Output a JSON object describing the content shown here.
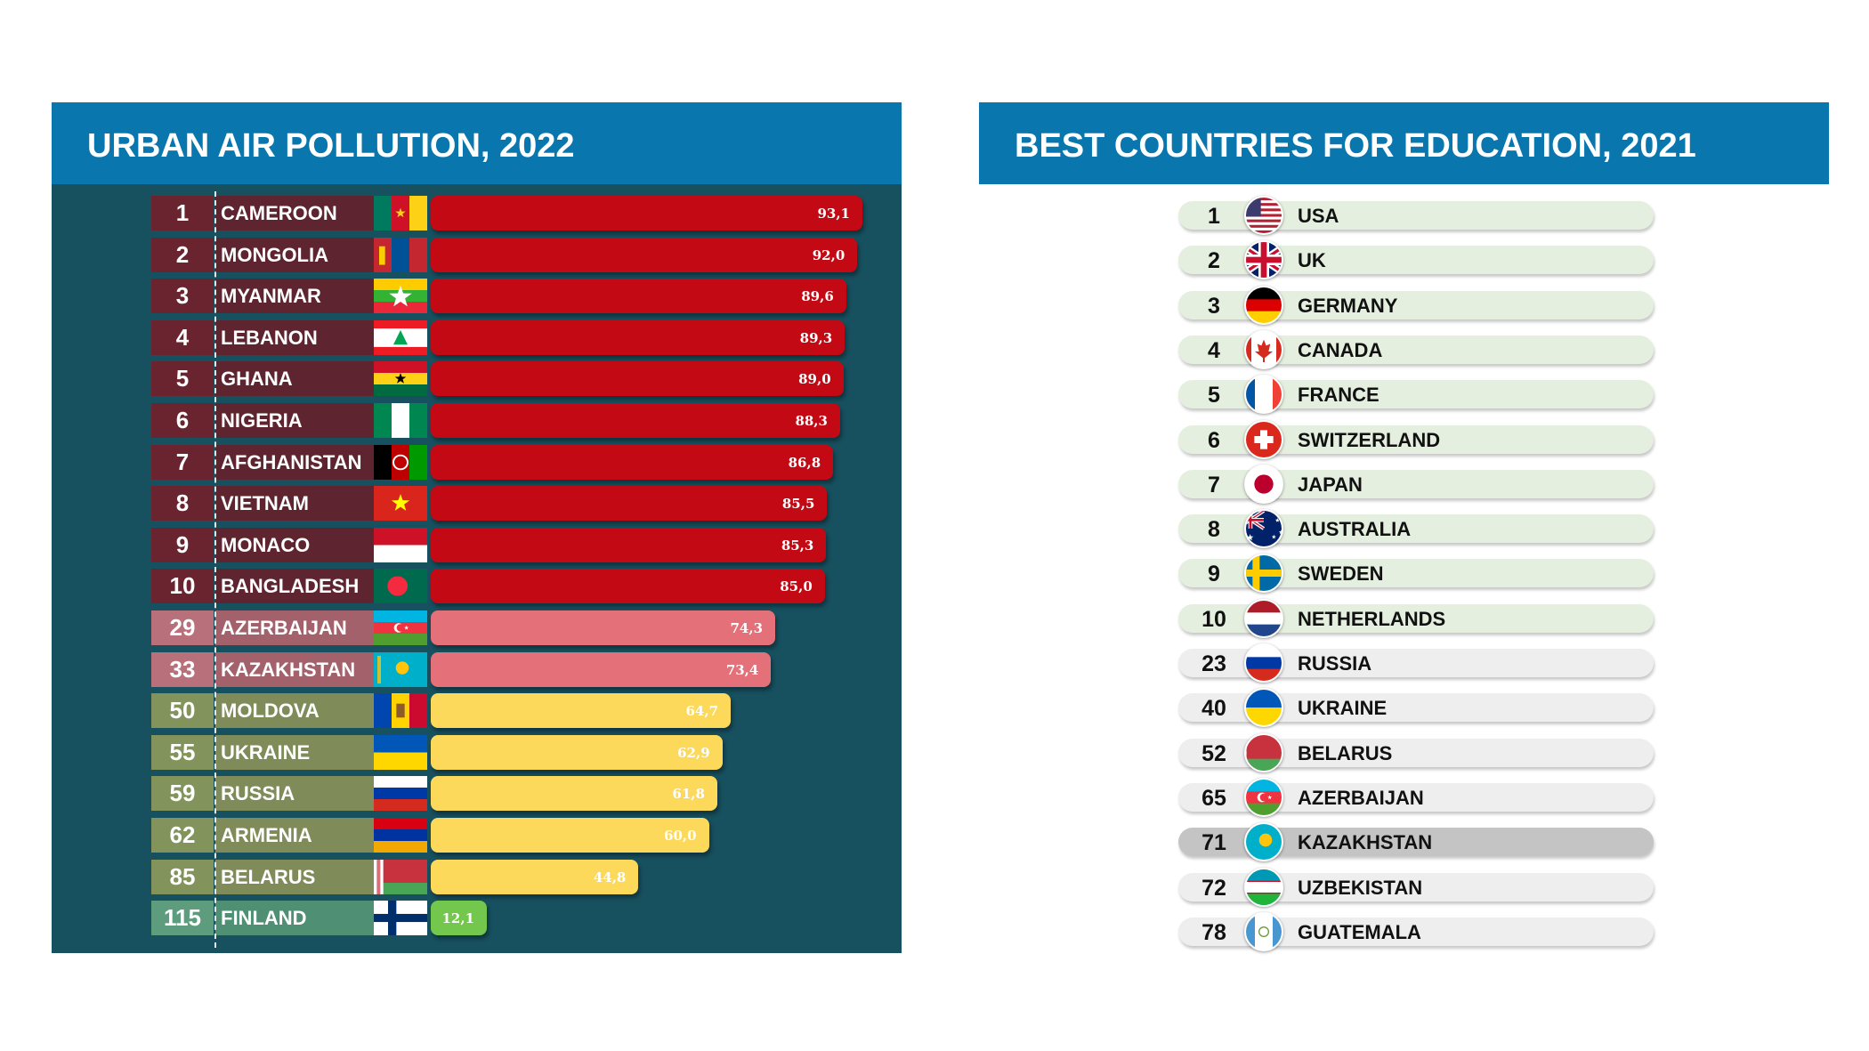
{
  "colors": {
    "header_blue": "#0a76ae",
    "panel_teal": "#17505f",
    "severe_red": "#c30a14",
    "moderate_pink": "#e47079",
    "mild_yellow": "#fcd95a",
    "low_green": "#72c74c",
    "top10_pill": "#e5efdf",
    "other_pill": "#eeeeee",
    "highlight_pill": "#c4c4c4"
  },
  "chart_data": [
    {
      "type": "bar",
      "orientation": "horizontal",
      "title": "URBAN AIR POLLUTION, 2022",
      "xlim": [
        0,
        100
      ],
      "grid": false,
      "legend": "none",
      "rows": [
        {
          "rank": "1",
          "country": "CAMEROON",
          "value": 93.1,
          "label": "93,1",
          "flag": "cameroon-flag",
          "level": "severe"
        },
        {
          "rank": "2",
          "country": "MONGOLIA",
          "value": 92.0,
          "label": "92,0",
          "flag": "mongolia-flag",
          "level": "severe"
        },
        {
          "rank": "3",
          "country": "MYANMAR",
          "value": 89.6,
          "label": "89,6",
          "flag": "myanmar-flag",
          "level": "severe"
        },
        {
          "rank": "4",
          "country": "LEBANON",
          "value": 89.3,
          "label": "89,3",
          "flag": "lebanon-flag",
          "level": "severe"
        },
        {
          "rank": "5",
          "country": "GHANA",
          "value": 89.0,
          "label": "89,0",
          "flag": "ghana-flag",
          "level": "severe"
        },
        {
          "rank": "6",
          "country": "NIGERIA",
          "value": 88.3,
          "label": "88,3",
          "flag": "nigeria-flag",
          "level": "severe"
        },
        {
          "rank": "7",
          "country": "AFGHANISTAN",
          "value": 86.8,
          "label": "86,8",
          "flag": "afghanistan-flag",
          "level": "severe"
        },
        {
          "rank": "8",
          "country": "VIETNAM",
          "value": 85.5,
          "label": "85,5",
          "flag": "vietnam-flag",
          "level": "severe"
        },
        {
          "rank": "9",
          "country": "MONACO",
          "value": 85.3,
          "label": "85,3",
          "flag": "monaco-flag",
          "level": "severe"
        },
        {
          "rank": "10",
          "country": "BANGLADESH",
          "value": 85.0,
          "label": "85,0",
          "flag": "bangladesh-flag",
          "level": "severe"
        },
        {
          "rank": "29",
          "country": "AZERBAIJAN",
          "value": 74.3,
          "label": "74,3",
          "flag": "azerbaijan-flag",
          "level": "moderate"
        },
        {
          "rank": "33",
          "country": "KAZAKHSTAN",
          "value": 73.4,
          "label": "73,4",
          "flag": "kazakhstan-flag",
          "level": "moderate"
        },
        {
          "rank": "50",
          "country": "MOLDOVA",
          "value": 64.7,
          "label": "64,7",
          "flag": "moldova-flag",
          "level": "mild"
        },
        {
          "rank": "55",
          "country": "UKRAINE",
          "value": 62.9,
          "label": "62,9",
          "flag": "ukraine-flag",
          "level": "mild"
        },
        {
          "rank": "59",
          "country": "RUSSIA",
          "value": 61.8,
          "label": "61,8",
          "flag": "russia-flag",
          "level": "mild"
        },
        {
          "rank": "62",
          "country": "ARMENIA",
          "value": 60.0,
          "label": "60,0",
          "flag": "armenia-flag",
          "level": "mild"
        },
        {
          "rank": "85",
          "country": "BELARUS",
          "value": 44.8,
          "label": "44,8",
          "flag": "belarus-flag",
          "level": "mild"
        },
        {
          "rank": "115",
          "country": "FINLAND",
          "value": 12.1,
          "label": "12,1",
          "flag": "finland-flag",
          "level": "low"
        }
      ]
    },
    {
      "type": "table",
      "title": "BEST COUNTRIES FOR EDUCATION, 2021",
      "rows": [
        {
          "rank": "1",
          "country": "USA",
          "flag": "usa-flag",
          "group": "top10"
        },
        {
          "rank": "2",
          "country": "UK",
          "flag": "uk-flag",
          "group": "top10"
        },
        {
          "rank": "3",
          "country": "GERMANY",
          "flag": "germany-flag",
          "group": "top10"
        },
        {
          "rank": "4",
          "country": "CANADA",
          "flag": "canada-flag",
          "group": "top10"
        },
        {
          "rank": "5",
          "country": "FRANCE",
          "flag": "france-flag",
          "group": "top10"
        },
        {
          "rank": "6",
          "country": "SWITZERLAND",
          "flag": "switzerland-flag",
          "group": "top10"
        },
        {
          "rank": "7",
          "country": "JAPAN",
          "flag": "japan-flag",
          "group": "top10"
        },
        {
          "rank": "8",
          "country": "AUSTRALIA",
          "flag": "australia-flag",
          "group": "top10"
        },
        {
          "rank": "9",
          "country": "SWEDEN",
          "flag": "sweden-flag",
          "group": "top10"
        },
        {
          "rank": "10",
          "country": "NETHERLANDS",
          "flag": "netherlands-flag",
          "group": "top10"
        },
        {
          "rank": "23",
          "country": "RUSSIA",
          "flag": "russia-flag",
          "group": "other"
        },
        {
          "rank": "40",
          "country": "UKRAINE",
          "flag": "ukraine-flag",
          "group": "other"
        },
        {
          "rank": "52",
          "country": "BELARUS",
          "flag": "belarus-flag",
          "group": "other"
        },
        {
          "rank": "65",
          "country": "AZERBAIJAN",
          "flag": "azerbaijan-flag",
          "group": "other"
        },
        {
          "rank": "71",
          "country": "KAZAKHSTAN",
          "flag": "kazakhstan-flag",
          "group": "highlight"
        },
        {
          "rank": "72",
          "country": "UZBEKISTAN",
          "flag": "uzbekistan-flag",
          "group": "other"
        },
        {
          "rank": "78",
          "country": "GUATEMALA",
          "flag": "guatemala-flag",
          "group": "other"
        }
      ]
    }
  ]
}
